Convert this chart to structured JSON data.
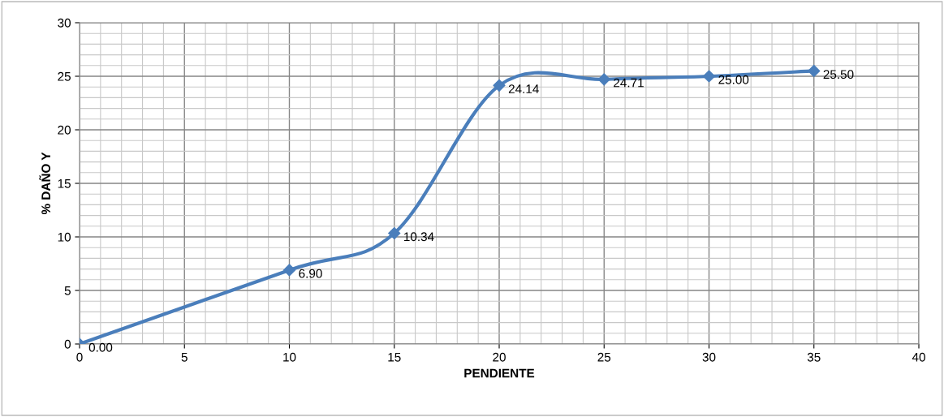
{
  "chart_data": {
    "type": "line",
    "xlabel": "PENDIENTE",
    "ylabel": "% DAÑO Y",
    "x": [
      0,
      10,
      15,
      20,
      25,
      30,
      35
    ],
    "series": [
      {
        "color": "#4a7ebb",
        "values": [
          0,
          6.9,
          10.34,
          24.14,
          24.71,
          25.0,
          25.5
        ],
        "value_labels": [
          "0.00",
          "6.90",
          "10.34",
          "24.14",
          "24.71",
          "25.00",
          "25.50"
        ]
      }
    ],
    "xlim": [
      0,
      40
    ],
    "xticks": [
      0,
      5,
      10,
      15,
      20,
      25,
      30,
      35,
      40
    ],
    "ylim": [
      0,
      30
    ],
    "yticks": [
      0,
      5,
      10,
      15,
      20,
      25,
      30
    ],
    "grid": true,
    "marker": "diamond",
    "line_style": "solid"
  }
}
